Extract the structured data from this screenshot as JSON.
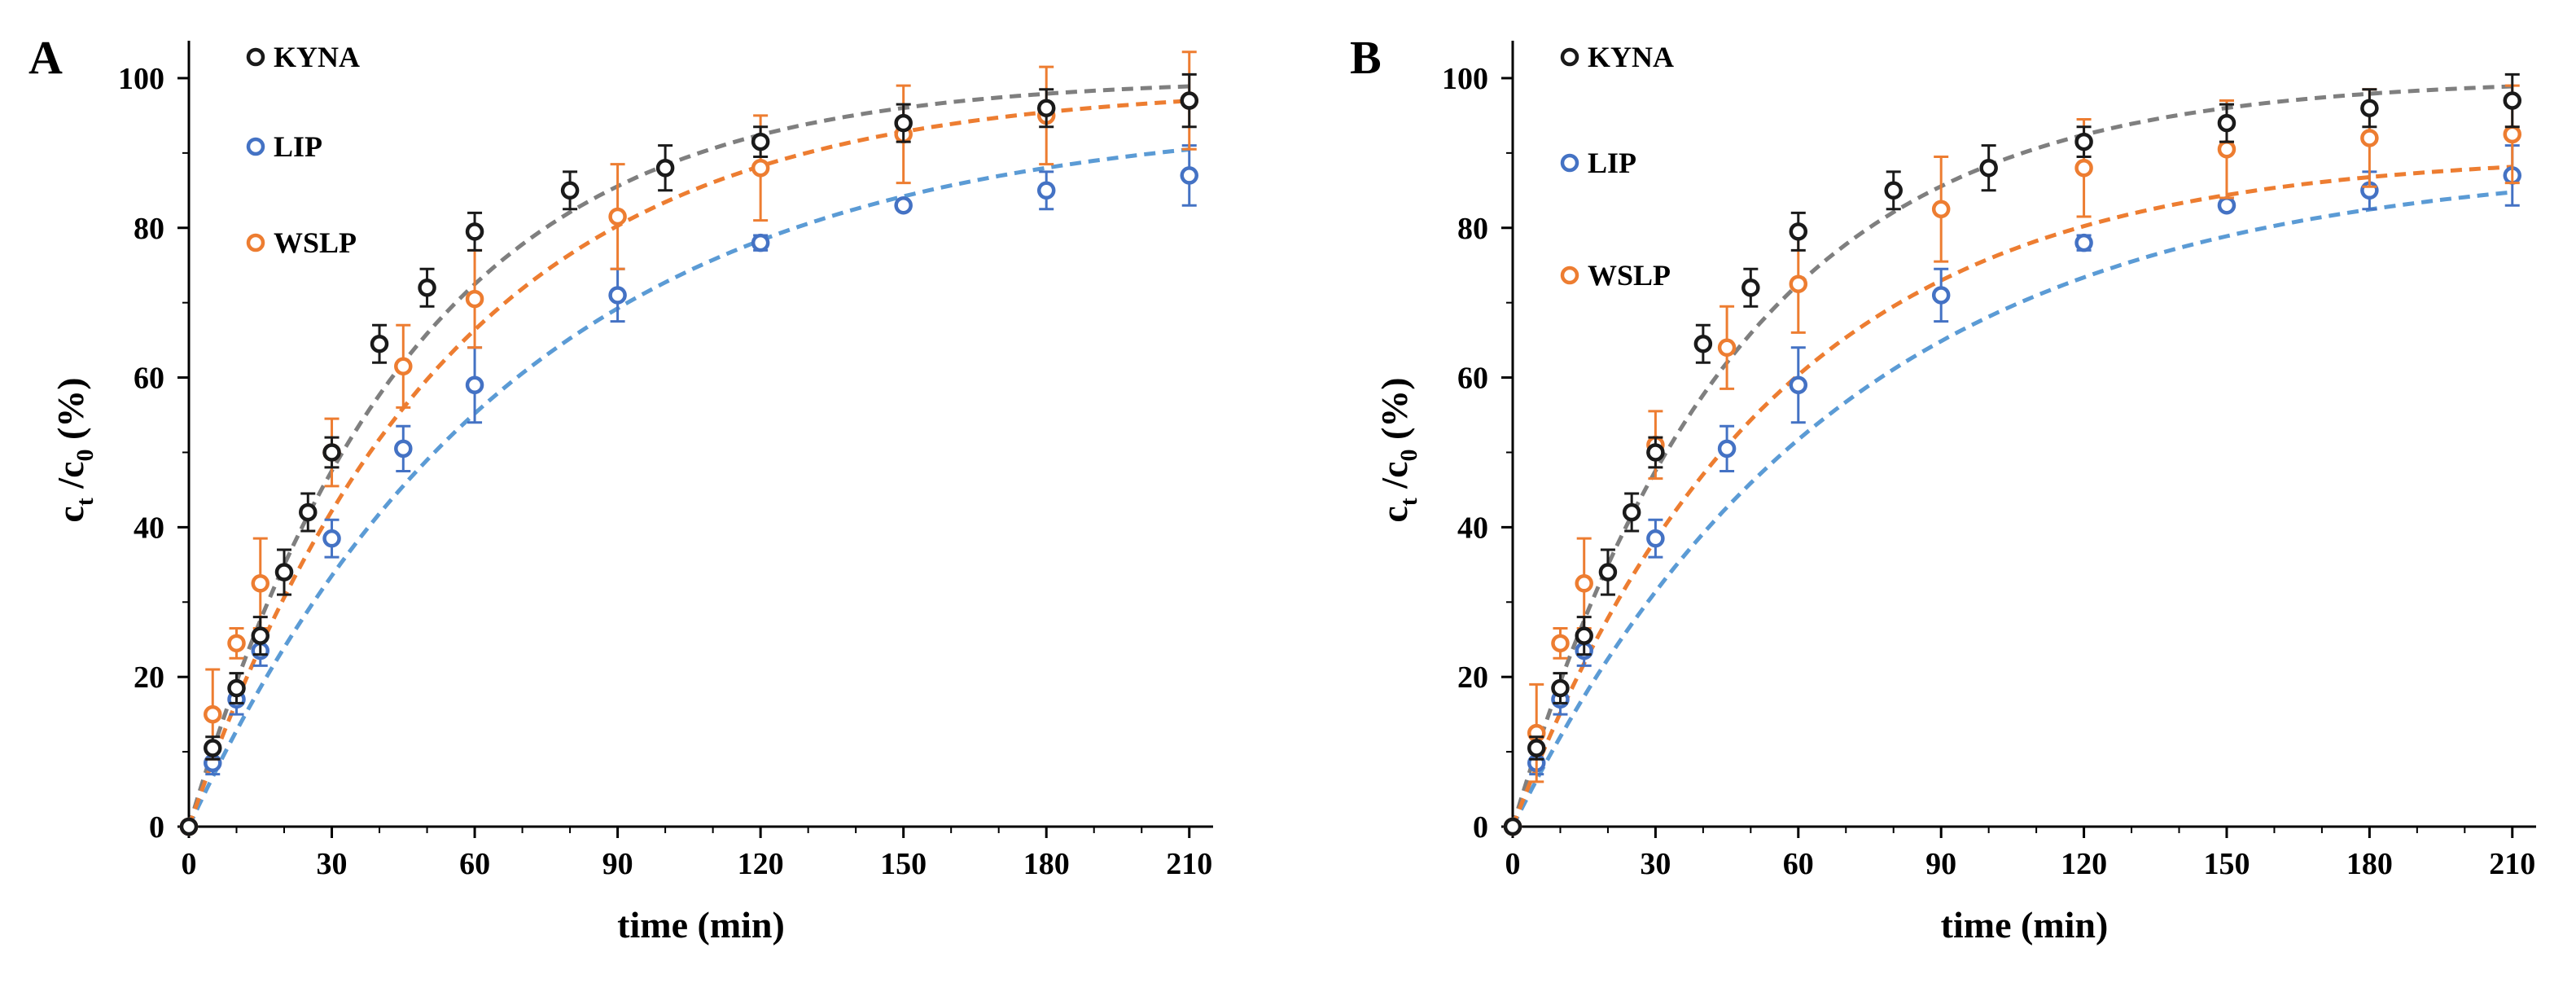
{
  "colors": {
    "KYNA": "#1a1a1a",
    "LIP": "#4472c4",
    "WSLP": "#ed7d31",
    "KYNA_fit": "#7f7f7f",
    "LIP_fit": "#5b9bd5",
    "WSLP_fit": "#ed7d31"
  },
  "chart_data": [
    {
      "type": "scatter",
      "panel": "A",
      "xlabel": "time (min)",
      "ylabel": "ct /c0 (%)",
      "ylabel_parts": {
        "c1": "c",
        "sub1": "t",
        "slash": " /c",
        "sub2": "0",
        "tail": " (%)"
      },
      "xlim": [
        0,
        215
      ],
      "ylim": [
        0,
        105
      ],
      "xticks": [
        0,
        30,
        60,
        90,
        120,
        150,
        180,
        210
      ],
      "yticks": [
        0,
        20,
        40,
        60,
        80,
        100
      ],
      "legend": [
        "KYNA",
        "LIP",
        "WSLP"
      ],
      "series": [
        {
          "name": "KYNA",
          "x": [
            0,
            5,
            10,
            15,
            20,
            25,
            30,
            40,
            50,
            60,
            80,
            100,
            120,
            150,
            180,
            210
          ],
          "y": [
            0,
            10.5,
            18.5,
            25.5,
            34,
            42,
            50,
            64.5,
            72,
            79.5,
            85,
            88,
            91.5,
            94,
            96,
            97
          ],
          "err": [
            0,
            1.5,
            2,
            2.5,
            3,
            2.5,
            2,
            2.5,
            2.5,
            2.5,
            2.5,
            3,
            2,
            2.5,
            2.5,
            3.5
          ]
        },
        {
          "name": "LIP",
          "x": [
            0,
            5,
            10,
            15,
            30,
            45,
            60,
            90,
            120,
            150,
            180,
            210
          ],
          "y": [
            0,
            8.5,
            17,
            23.5,
            38.5,
            50.5,
            59,
            71,
            78,
            83,
            85,
            87
          ],
          "err": [
            0,
            1.5,
            2,
            2,
            2.5,
            3,
            5,
            3.5,
            1,
            0.5,
            2.5,
            4
          ]
        },
        {
          "name": "WSLP",
          "x": [
            0,
            5,
            10,
            15,
            30,
            45,
            60,
            90,
            120,
            150,
            180,
            210
          ],
          "y": [
            0,
            15,
            24.5,
            32.5,
            50,
            61.5,
            70.5,
            81.5,
            88,
            92.5,
            95,
            97
          ],
          "err": [
            0,
            6,
            2,
            6,
            4.5,
            5.5,
            6.5,
            7,
            7,
            6.5,
            6.5,
            6.5
          ]
        }
      ],
      "fits": [
        {
          "name": "KYNA",
          "plateau": 100,
          "k": 0.0215
        },
        {
          "name": "LIP",
          "plateau": 95,
          "k": 0.0145
        },
        {
          "name": "WSLP",
          "plateau": 99,
          "k": 0.0185
        }
      ]
    },
    {
      "type": "scatter",
      "panel": "B",
      "xlabel": "time (min)",
      "ylabel": "ct /c0 (%)",
      "ylabel_parts": {
        "c1": "c",
        "sub1": "t",
        "slash": " /c",
        "sub2": "0",
        "tail": " (%)"
      },
      "xlim": [
        0,
        215
      ],
      "ylim": [
        0,
        105
      ],
      "xticks": [
        0,
        30,
        60,
        90,
        120,
        150,
        180,
        210
      ],
      "yticks": [
        0,
        20,
        40,
        60,
        80,
        100
      ],
      "legend": [
        "KYNA",
        "LIP",
        "WSLP"
      ],
      "series": [
        {
          "name": "KYNA",
          "x": [
            0,
            5,
            10,
            15,
            20,
            25,
            30,
            40,
            50,
            60,
            80,
            100,
            120,
            150,
            180,
            210
          ],
          "y": [
            0,
            10.5,
            18.5,
            25.5,
            34,
            42,
            50,
            64.5,
            72,
            79.5,
            85,
            88,
            91.5,
            94,
            96,
            97
          ],
          "err": [
            0,
            1.5,
            2,
            2.5,
            3,
            2.5,
            2,
            2.5,
            2.5,
            2.5,
            2.5,
            3,
            2,
            2.5,
            2.5,
            3.5
          ]
        },
        {
          "name": "LIP",
          "x": [
            0,
            5,
            10,
            15,
            30,
            45,
            60,
            90,
            120,
            150,
            180,
            210
          ],
          "y": [
            0,
            8.5,
            17,
            23.5,
            38.5,
            50.5,
            59,
            71,
            78,
            83,
            85,
            87
          ],
          "err": [
            0,
            1.5,
            2,
            2,
            2.5,
            3,
            5,
            3.5,
            1,
            0.5,
            2.5,
            4
          ]
        },
        {
          "name": "WSLP",
          "x": [
            0,
            5,
            10,
            15,
            30,
            45,
            60,
            90,
            120,
            150,
            180,
            210
          ],
          "y": [
            0,
            12.5,
            24.5,
            32.5,
            51,
            64,
            72.5,
            82.5,
            88,
            90.5,
            92,
            92.5
          ],
          "err": [
            0,
            6.5,
            2,
            6,
            4.5,
            5.5,
            6.5,
            7,
            6.5,
            6.5,
            6.5,
            6.5
          ]
        }
      ],
      "fits": [
        {
          "name": "KYNA",
          "plateau": 100,
          "k": 0.0215
        },
        {
          "name": "LIP",
          "plateau": 89,
          "k": 0.0145
        },
        {
          "name": "WSLP",
          "plateau": 90,
          "k": 0.0185
        }
      ]
    }
  ]
}
